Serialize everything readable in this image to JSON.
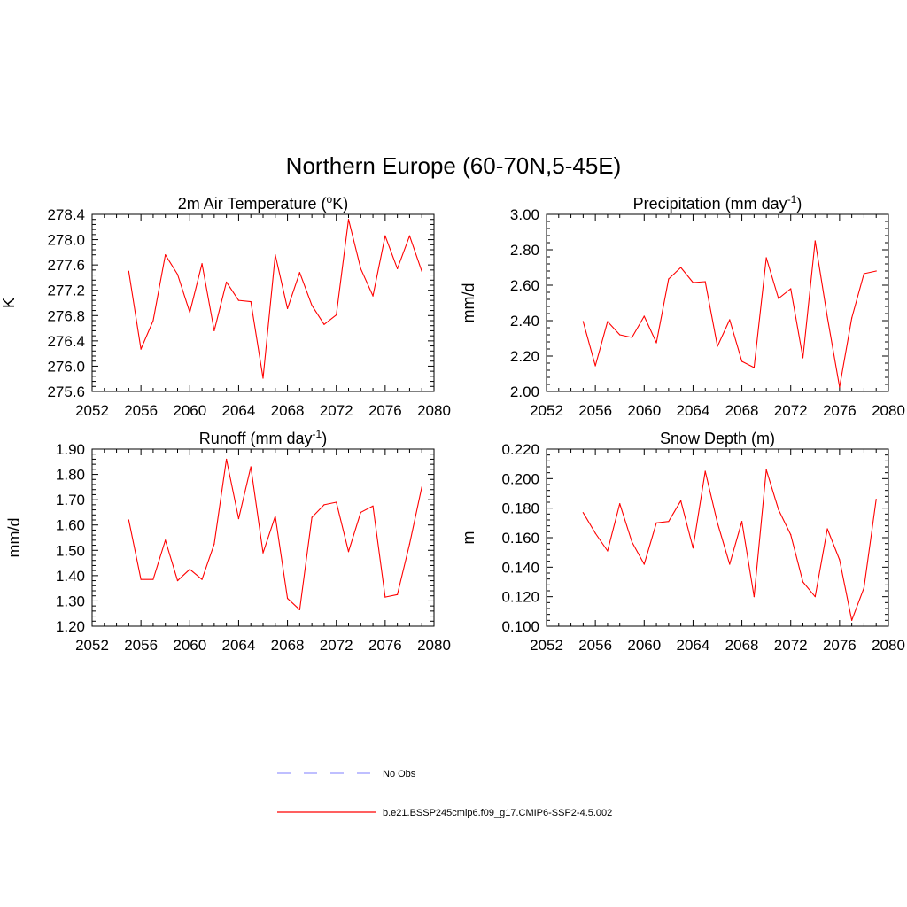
{
  "title": "Northern Europe (60-70N,5-45E)",
  "colors": {
    "series": "#ff0000",
    "obs": "#9999ff",
    "axis": "#000000"
  },
  "legend": [
    {
      "label": "No Obs",
      "style": "dashed",
      "color": "#9999ff"
    },
    {
      "label": "b.e21.BSSP245cmip6.f09_g17.CMIP6-SSP2-4.5.002",
      "style": "solid",
      "color": "#ff0000"
    }
  ],
  "chart_data": [
    {
      "type": "line",
      "title": "2m Air Temperature (",
      "title_sup": "o",
      "title_after": "K)",
      "ylabel": "K",
      "xlim": [
        2052,
        2080
      ],
      "ylim": [
        275.6,
        278.4
      ],
      "xticks": [
        2052,
        2056,
        2060,
        2064,
        2068,
        2072,
        2076,
        2080
      ],
      "xtick_labels": [
        "2052",
        "2056",
        "2060",
        "2064",
        "2068",
        "2072",
        "2076",
        "2080"
      ],
      "yticks": [
        275.6,
        276.0,
        276.4,
        276.8,
        277.2,
        277.6,
        278.0,
        278.4
      ],
      "ytick_labels": [
        "275.6",
        "276.0",
        "276.4",
        "276.8",
        "277.2",
        "277.6",
        "278.0",
        "278.4"
      ],
      "series": [
        {
          "x": [
            2055,
            2056,
            2057,
            2058,
            2059,
            2060,
            2061,
            2062,
            2063,
            2064,
            2065,
            2066,
            2067,
            2068,
            2069,
            2070,
            2071,
            2072,
            2073,
            2074,
            2075,
            2076,
            2077,
            2078,
            2079
          ],
          "values": [
            277.5,
            276.27,
            276.72,
            277.76,
            277.45,
            276.85,
            277.62,
            276.56,
            277.33,
            277.04,
            277.02,
            275.81,
            277.76,
            276.91,
            277.48,
            276.96,
            276.66,
            276.81,
            278.32,
            277.54,
            277.11,
            278.06,
            277.54,
            278.06,
            277.5
          ]
        }
      ]
    },
    {
      "type": "line",
      "title": "Precipitation (mm day",
      "title_sup": "-1",
      "title_after": ")",
      "ylabel": "mm/d",
      "xlim": [
        2052,
        2080
      ],
      "ylim": [
        2.0,
        3.0
      ],
      "xticks": [
        2052,
        2056,
        2060,
        2064,
        2068,
        2072,
        2076,
        2080
      ],
      "xtick_labels": [
        "2052",
        "2056",
        "2060",
        "2064",
        "2068",
        "2072",
        "2076",
        "2080"
      ],
      "yticks": [
        2.0,
        2.2,
        2.4,
        2.6,
        2.8,
        3.0
      ],
      "ytick_labels": [
        "2.00",
        "2.20",
        "2.40",
        "2.60",
        "2.80",
        "3.00"
      ],
      "series": [
        {
          "x": [
            2055,
            2056,
            2057,
            2058,
            2059,
            2060,
            2061,
            2062,
            2063,
            2064,
            2065,
            2066,
            2067,
            2068,
            2069,
            2070,
            2071,
            2072,
            2073,
            2074,
            2075,
            2076,
            2077,
            2078,
            2079
          ],
          "values": [
            2.395,
            2.145,
            2.395,
            2.32,
            2.305,
            2.425,
            2.275,
            2.635,
            2.7,
            2.615,
            2.62,
            2.255,
            2.405,
            2.17,
            2.135,
            2.755,
            2.525,
            2.58,
            2.19,
            2.85,
            2.42,
            2.025,
            2.415,
            2.665,
            2.68
          ]
        }
      ]
    },
    {
      "type": "line",
      "title": "Runoff (mm day",
      "title_sup": "-1",
      "title_after": ")",
      "ylabel": "mm/d",
      "xlim": [
        2052,
        2080
      ],
      "ylim": [
        1.2,
        1.9
      ],
      "xticks": [
        2052,
        2056,
        2060,
        2064,
        2068,
        2072,
        2076,
        2080
      ],
      "xtick_labels": [
        "2052",
        "2056",
        "2060",
        "2064",
        "2068",
        "2072",
        "2076",
        "2080"
      ],
      "yticks": [
        1.2,
        1.3,
        1.4,
        1.5,
        1.6,
        1.7,
        1.8,
        1.9
      ],
      "ytick_labels": [
        "1.20",
        "1.30",
        "1.40",
        "1.50",
        "1.60",
        "1.70",
        "1.80",
        "1.90"
      ],
      "series": [
        {
          "x": [
            2055,
            2056,
            2057,
            2058,
            2059,
            2060,
            2061,
            2062,
            2063,
            2064,
            2065,
            2066,
            2067,
            2068,
            2069,
            2070,
            2071,
            2072,
            2073,
            2074,
            2075,
            2076,
            2077,
            2078,
            2079
          ],
          "values": [
            1.62,
            1.385,
            1.385,
            1.54,
            1.38,
            1.425,
            1.385,
            1.525,
            1.86,
            1.625,
            1.83,
            1.49,
            1.635,
            1.31,
            1.265,
            1.63,
            1.68,
            1.69,
            1.495,
            1.65,
            1.675,
            1.315,
            1.325,
            1.525,
            1.75
          ]
        }
      ]
    },
    {
      "type": "line",
      "title": "Snow Depth (m)",
      "title_sup": "",
      "title_after": "",
      "ylabel": "m",
      "xlim": [
        2052,
        2080
      ],
      "ylim": [
        0.1,
        0.22
      ],
      "xticks": [
        2052,
        2056,
        2060,
        2064,
        2068,
        2072,
        2076,
        2080
      ],
      "xtick_labels": [
        "2052",
        "2056",
        "2060",
        "2064",
        "2068",
        "2072",
        "2076",
        "2080"
      ],
      "yticks": [
        0.1,
        0.12,
        0.14,
        0.16,
        0.18,
        0.2,
        0.22
      ],
      "ytick_labels": [
        "0.100",
        "0.120",
        "0.140",
        "0.160",
        "0.180",
        "0.200",
        "0.220"
      ],
      "series": [
        {
          "x": [
            2055,
            2056,
            2057,
            2058,
            2059,
            2060,
            2061,
            2062,
            2063,
            2064,
            2065,
            2066,
            2067,
            2068,
            2069,
            2070,
            2071,
            2072,
            2073,
            2074,
            2075,
            2076,
            2077,
            2078,
            2079
          ],
          "values": [
            0.177,
            0.163,
            0.151,
            0.183,
            0.157,
            0.142,
            0.17,
            0.171,
            0.185,
            0.153,
            0.205,
            0.17,
            0.142,
            0.171,
            0.12,
            0.206,
            0.179,
            0.162,
            0.13,
            0.12,
            0.166,
            0.145,
            0.104,
            0.126,
            0.186
          ]
        }
      ]
    }
  ]
}
